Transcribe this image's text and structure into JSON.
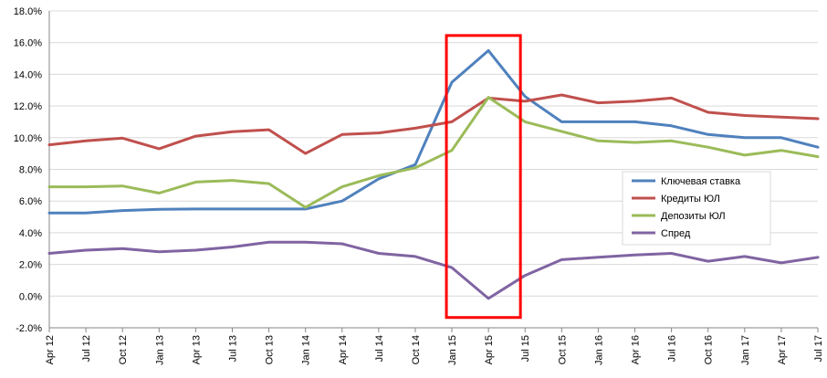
{
  "chart_data": {
    "type": "line",
    "categories": [
      "Apr 12",
      "Jul 12",
      "Oct 12",
      "Jan 13",
      "Apr 13",
      "Jul 13",
      "Oct 13",
      "Jan 14",
      "Apr 14",
      "Jul 14",
      "Oct 14",
      "Jan 15",
      "Apr 15",
      "Jul 15",
      "Oct 15",
      "Jan 16",
      "Apr 16",
      "Jul 16",
      "Oct 16",
      "Jan 17",
      "Apr 17",
      "Jul 17"
    ],
    "ylim": [
      -0.02,
      0.18
    ],
    "yticks": [
      "-2.0%",
      "0.0%",
      "2.0%",
      "4.0%",
      "6.0%",
      "8.0%",
      "10.0%",
      "12.0%",
      "14.0%",
      "16.0%",
      "18.0%"
    ],
    "grid": true,
    "legend_position": "right",
    "highlight": {
      "from": "Jan 15",
      "to": "Apr 15",
      "color": "#ff0000"
    },
    "series": [
      {
        "name": "Ключевая ставка",
        "color": "#4f81bd",
        "values": [
          0.0525,
          0.0525,
          0.054,
          0.0548,
          0.055,
          0.055,
          0.055,
          0.055,
          0.06,
          0.074,
          0.083,
          0.135,
          0.155,
          0.126,
          0.11,
          0.11,
          0.11,
          0.1075,
          0.102,
          0.1,
          0.1,
          0.094
        ]
      },
      {
        "name": "Кредиты ЮЛ",
        "color": "#c0504d",
        "values": [
          0.0955,
          0.098,
          0.0997,
          0.093,
          0.101,
          0.1038,
          0.105,
          0.09,
          0.102,
          0.103,
          0.106,
          0.11,
          0.125,
          0.123,
          0.127,
          0.122,
          0.123,
          0.125,
          0.116,
          0.114,
          0.113,
          0.112
        ]
      },
      {
        "name": "Депозиты ЮЛ",
        "color": "#9bbb59",
        "values": [
          0.069,
          0.069,
          0.0695,
          0.065,
          0.072,
          0.073,
          0.071,
          0.056,
          0.069,
          0.076,
          0.081,
          0.092,
          0.1255,
          0.11,
          0.104,
          0.098,
          0.097,
          0.098,
          0.094,
          0.089,
          0.092,
          0.088
        ]
      },
      {
        "name": "Спред",
        "color": "#8064a2",
        "values": [
          0.027,
          0.029,
          0.03,
          0.028,
          0.029,
          0.031,
          0.034,
          0.034,
          0.033,
          0.027,
          0.025,
          0.018,
          -0.0015,
          0.013,
          0.023,
          0.0245,
          0.026,
          0.027,
          0.022,
          0.025,
          0.021,
          0.0245
        ]
      }
    ]
  }
}
